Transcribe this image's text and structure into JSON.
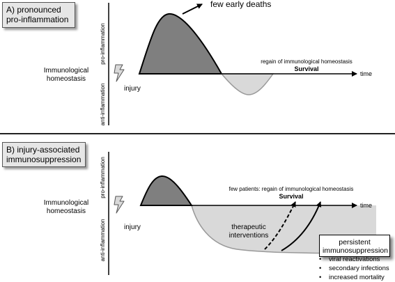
{
  "panel_a": {
    "label_line1": "A) pronounced",
    "label_line2": "pro-inflammation",
    "annotation": "few early deaths",
    "y_axis_up": "pro-inflammation",
    "y_axis_down": "anti-inflammation",
    "baseline_line1": "Immunological",
    "baseline_line2": "homeostasis",
    "trigger": "injury",
    "outcome_line1": "regain of immunological homeostasis",
    "outcome_line2": "Survival",
    "x_axis": "time"
  },
  "panel_b": {
    "label_line1": "B) injury-associated",
    "label_line2": "immunosuppression",
    "y_axis_up": "pro-inflammation",
    "y_axis_down": "anti-inflammation",
    "baseline_line1": "Immunological",
    "baseline_line2": "homeostasis",
    "trigger": "injury",
    "outcome_line1": "few patients: regain of immunological homeostasis",
    "outcome_line2": "Survival",
    "x_axis": "time",
    "intervention_line1": "therapeutic",
    "intervention_line2": "interventions",
    "callout_line1": "persistent",
    "callout_line2": "immunosuppression",
    "consequences": [
      "viral reactivations",
      "secondary infections",
      "increased mortality"
    ]
  },
  "colors": {
    "pro_fill": "#7f7f7f",
    "anti_fill": "#d9d9d9",
    "label_bg": "#e6e6e6",
    "separator": "#222222"
  },
  "icons": [
    "lightning-icon"
  ]
}
